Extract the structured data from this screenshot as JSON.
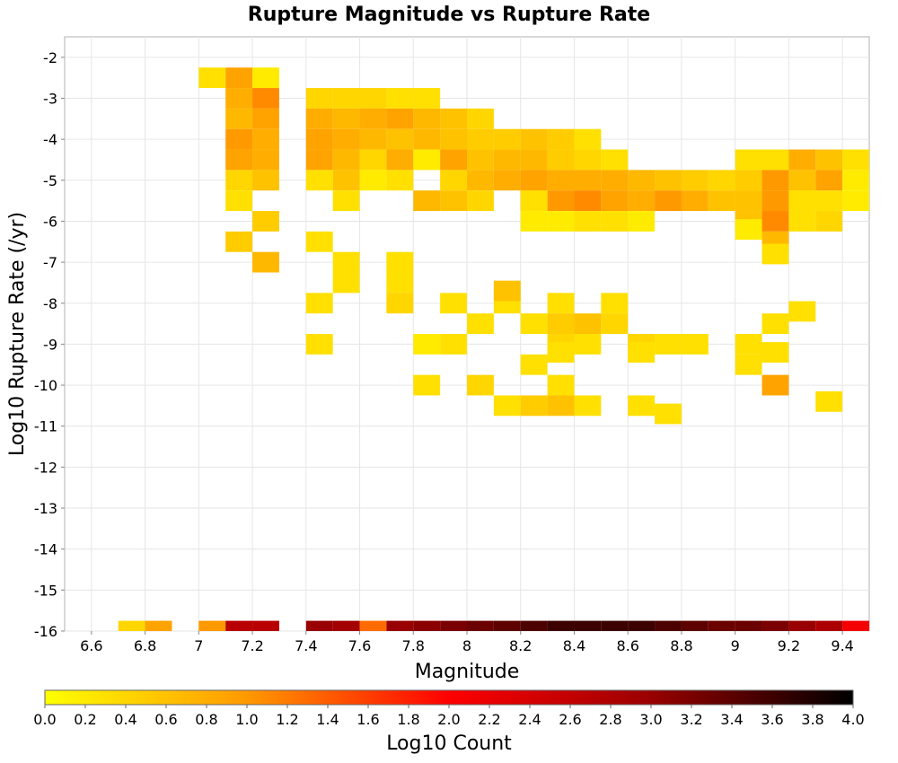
{
  "chart_data": {
    "type": "heatmap",
    "title": "Rupture Magnitude vs Rupture Rate",
    "xlabel": "Magnitude",
    "ylabel": "Log10 Rupture Rate (/yr)",
    "colorbar_label": "Log10 Count",
    "xlim": [
      6.5,
      9.5
    ],
    "ylim": [
      -16,
      -1.5
    ],
    "x_ticks": [
      "6.6",
      "6.8",
      "7",
      "7.2",
      "7.4",
      "7.6",
      "7.8",
      "8",
      "8.2",
      "8.4",
      "8.6",
      "8.8",
      "9",
      "9.2",
      "9.4"
    ],
    "y_ticks": [
      "-2",
      "-3",
      "-4",
      "-5",
      "-6",
      "-7",
      "-8",
      "-9",
      "-10",
      "-11",
      "-12",
      "-13",
      "-14",
      "-15",
      "-16"
    ],
    "colorbar_ticks": [
      "0.0",
      "0.2",
      "0.4",
      "0.6",
      "0.8",
      "1.0",
      "1.2",
      "1.4",
      "1.6",
      "1.8",
      "2.0",
      "2.2",
      "2.4",
      "2.6",
      "2.8",
      "3.0",
      "3.2",
      "3.4",
      "3.6",
      "3.8",
      "4.0"
    ],
    "colorbar_range": [
      0.0,
      4.0
    ],
    "colorscale": [
      "#ffff00",
      "#ff9900",
      "#ff0000",
      "#990000",
      "#000000"
    ],
    "grid": true,
    "cell_size": {
      "magnitude": 0.1,
      "log_rate": 0.5
    },
    "cells": [
      [
        7.05,
        -2.5,
        0.3
      ],
      [
        7.15,
        -2.5,
        0.9
      ],
      [
        7.25,
        -2.5,
        0.2
      ],
      [
        7.15,
        -3.0,
        0.8
      ],
      [
        7.25,
        -3.0,
        1.1
      ],
      [
        7.15,
        -3.5,
        0.7
      ],
      [
        7.25,
        -3.5,
        0.9
      ],
      [
        7.15,
        -4.0,
        1.0
      ],
      [
        7.25,
        -4.0,
        0.8
      ],
      [
        7.15,
        -4.5,
        0.9
      ],
      [
        7.25,
        -4.5,
        0.8
      ],
      [
        7.15,
        -5.0,
        0.4
      ],
      [
        7.25,
        -5.0,
        0.6
      ],
      [
        7.15,
        -5.5,
        0.3
      ],
      [
        7.25,
        -6.0,
        0.5
      ],
      [
        7.15,
        -6.5,
        0.5
      ],
      [
        7.25,
        -7.0,
        0.7
      ],
      [
        7.45,
        -3.0,
        0.4
      ],
      [
        7.55,
        -3.0,
        0.4
      ],
      [
        7.65,
        -3.0,
        0.4
      ],
      [
        7.75,
        -3.0,
        0.3
      ],
      [
        7.85,
        -3.0,
        0.3
      ],
      [
        7.45,
        -3.5,
        0.8
      ],
      [
        7.55,
        -3.5,
        0.7
      ],
      [
        7.65,
        -3.5,
        0.8
      ],
      [
        7.75,
        -3.5,
        0.9
      ],
      [
        7.85,
        -3.5,
        0.7
      ],
      [
        7.95,
        -3.5,
        0.6
      ],
      [
        8.05,
        -3.5,
        0.4
      ],
      [
        7.45,
        -4.0,
        0.9
      ],
      [
        7.55,
        -4.0,
        0.8
      ],
      [
        7.65,
        -4.0,
        0.7
      ],
      [
        7.75,
        -4.0,
        0.6
      ],
      [
        7.85,
        -4.0,
        0.7
      ],
      [
        7.95,
        -4.0,
        0.6
      ],
      [
        8.05,
        -4.0,
        0.5
      ],
      [
        8.15,
        -4.0,
        0.5
      ],
      [
        8.25,
        -4.0,
        0.6
      ],
      [
        8.35,
        -4.0,
        0.5
      ],
      [
        8.45,
        -4.0,
        0.3
      ],
      [
        7.45,
        -4.5,
        0.9
      ],
      [
        7.55,
        -4.5,
        0.7
      ],
      [
        7.65,
        -4.5,
        0.4
      ],
      [
        7.75,
        -4.5,
        0.8
      ],
      [
        7.85,
        -4.5,
        0.2
      ],
      [
        7.95,
        -4.5,
        0.9
      ],
      [
        8.05,
        -4.5,
        0.6
      ],
      [
        8.15,
        -4.5,
        0.7
      ],
      [
        8.25,
        -4.5,
        0.7
      ],
      [
        8.35,
        -4.5,
        0.5
      ],
      [
        8.45,
        -4.5,
        0.4
      ],
      [
        8.55,
        -4.5,
        0.3
      ],
      [
        7.45,
        -5.0,
        0.3
      ],
      [
        7.55,
        -5.0,
        0.6
      ],
      [
        7.65,
        -5.0,
        0.2
      ],
      [
        7.75,
        -5.0,
        0.3
      ],
      [
        7.95,
        -5.0,
        0.4
      ],
      [
        8.05,
        -5.0,
        0.7
      ],
      [
        8.15,
        -5.0,
        0.8
      ],
      [
        8.25,
        -5.0,
        0.9
      ],
      [
        8.35,
        -5.0,
        0.8
      ],
      [
        8.45,
        -5.0,
        0.8
      ],
      [
        8.55,
        -5.0,
        0.8
      ],
      [
        8.65,
        -5.0,
        0.7
      ],
      [
        8.75,
        -5.0,
        0.6
      ],
      [
        8.85,
        -5.0,
        0.5
      ],
      [
        8.95,
        -5.0,
        0.4
      ],
      [
        9.05,
        -5.0,
        0.4
      ],
      [
        8.25,
        -5.5,
        1.0
      ],
      [
        8.35,
        -5.5,
        1.0
      ],
      [
        8.45,
        -5.5,
        1.1
      ],
      [
        8.55,
        -5.5,
        0.9
      ],
      [
        8.65,
        -5.5,
        0.8
      ],
      [
        8.75,
        -5.5,
        1.0
      ],
      [
        8.85,
        -5.5,
        0.8
      ],
      [
        8.95,
        -5.5,
        0.6
      ],
      [
        9.05,
        -5.5,
        0.3
      ],
      [
        9.15,
        -5.5,
        0.4
      ],
      [
        9.25,
        -5.5,
        0.3
      ],
      [
        9.35,
        -5.5,
        0.3
      ],
      [
        9.45,
        -5.5,
        0.2
      ],
      [
        7.55,
        -5.5,
        0.3
      ],
      [
        7.85,
        -5.5,
        0.7
      ],
      [
        7.95,
        -5.5,
        0.6
      ],
      [
        8.05,
        -5.5,
        0.4
      ],
      [
        8.25,
        -5.5,
        0.3
      ],
      [
        8.25,
        -6.0,
        0.2
      ],
      [
        8.35,
        -6.0,
        0.2
      ],
      [
        8.45,
        -6.0,
        0.3
      ],
      [
        8.55,
        -6.0,
        0.3
      ],
      [
        8.65,
        -6.0,
        0.2
      ],
      [
        7.45,
        -6.5,
        0.3
      ],
      [
        7.55,
        -7.0,
        0.3
      ],
      [
        7.75,
        -7.0,
        0.3
      ],
      [
        7.55,
        -7.5,
        0.3
      ],
      [
        7.75,
        -7.5,
        0.3
      ],
      [
        7.45,
        -8.0,
        0.3
      ],
      [
        7.75,
        -8.0,
        0.4
      ],
      [
        7.95,
        -8.0,
        0.3
      ],
      [
        8.15,
        -8.0,
        0.3
      ],
      [
        8.35,
        -8.0,
        0.3
      ],
      [
        8.55,
        -8.0,
        0.3
      ],
      [
        8.15,
        -7.7,
        0.6
      ],
      [
        8.25,
        -8.5,
        0.3
      ],
      [
        8.35,
        -8.5,
        0.5
      ],
      [
        8.05,
        -8.5,
        0.3
      ],
      [
        8.45,
        -8.5,
        0.6
      ],
      [
        8.55,
        -8.5,
        0.4
      ],
      [
        7.45,
        -9.0,
        0.3
      ],
      [
        7.95,
        -9.0,
        0.3
      ],
      [
        8.35,
        -9.0,
        0.4
      ],
      [
        8.45,
        -9.0,
        0.3
      ],
      [
        8.65,
        -9.0,
        0.4
      ],
      [
        8.75,
        -9.0,
        0.3
      ],
      [
        8.85,
        -9.0,
        0.3
      ],
      [
        7.85,
        -9.0,
        0.2
      ],
      [
        8.65,
        -9.2,
        0.3
      ],
      [
        8.35,
        -9.2,
        0.3
      ],
      [
        8.25,
        -9.5,
        0.3
      ],
      [
        8.35,
        -10.0,
        0.3
      ],
      [
        7.85,
        -10.0,
        0.3
      ],
      [
        8.05,
        -10.0,
        0.4
      ],
      [
        8.15,
        -10.5,
        0.3
      ],
      [
        8.25,
        -10.5,
        0.5
      ],
      [
        8.35,
        -10.5,
        0.6
      ],
      [
        8.45,
        -10.5,
        0.3
      ],
      [
        8.65,
        -10.5,
        0.3
      ],
      [
        8.75,
        -10.7,
        0.3
      ],
      [
        9.05,
        -4.5,
        0.3
      ],
      [
        9.15,
        -4.5,
        0.3
      ],
      [
        9.25,
        -4.5,
        0.8
      ],
      [
        9.35,
        -4.5,
        0.6
      ],
      [
        9.45,
        -4.5,
        0.3
      ],
      [
        9.05,
        -5.0,
        0.5
      ],
      [
        9.15,
        -5.0,
        1.0
      ],
      [
        9.25,
        -5.0,
        0.6
      ],
      [
        9.35,
        -5.0,
        0.9
      ],
      [
        9.45,
        -5.0,
        0.2
      ],
      [
        9.05,
        -5.5,
        0.6
      ],
      [
        9.15,
        -5.5,
        1.0
      ],
      [
        9.25,
        -5.5,
        0.3
      ],
      [
        9.05,
        -6.0,
        0.6
      ],
      [
        9.15,
        -6.0,
        1.1
      ],
      [
        9.35,
        -6.0,
        0.4
      ],
      [
        9.25,
        -6.0,
        0.3
      ],
      [
        9.05,
        -6.2,
        0.2
      ],
      [
        9.15,
        -6.5,
        0.7
      ],
      [
        9.15,
        -6.8,
        0.3
      ],
      [
        9.25,
        -8.2,
        0.3
      ],
      [
        9.15,
        -8.5,
        0.3
      ],
      [
        9.05,
        -9.0,
        0.3
      ],
      [
        9.15,
        -9.2,
        0.3
      ],
      [
        9.05,
        -9.5,
        0.3
      ],
      [
        9.15,
        -10.0,
        0.9
      ],
      [
        9.35,
        -10.4,
        0.3
      ],
      [
        6.75,
        -16.0,
        0.4
      ],
      [
        6.85,
        -16.0,
        0.9
      ],
      [
        7.05,
        -16.0,
        1.0
      ],
      [
        7.15,
        -16.0,
        2.7
      ],
      [
        7.25,
        -16.0,
        2.7
      ],
      [
        7.45,
        -16.0,
        3.0
      ],
      [
        7.55,
        -16.0,
        2.9
      ],
      [
        7.65,
        -16.0,
        1.3
      ],
      [
        7.75,
        -16.0,
        3.0
      ],
      [
        7.85,
        -16.0,
        3.1
      ],
      [
        7.95,
        -16.0,
        3.2
      ],
      [
        8.05,
        -16.0,
        3.3
      ],
      [
        8.15,
        -16.0,
        3.4
      ],
      [
        8.25,
        -16.0,
        3.5
      ],
      [
        8.35,
        -16.0,
        3.6
      ],
      [
        8.45,
        -16.0,
        3.6
      ],
      [
        8.55,
        -16.0,
        3.6
      ],
      [
        8.65,
        -16.0,
        3.6
      ],
      [
        8.75,
        -16.0,
        3.5
      ],
      [
        8.85,
        -16.0,
        3.4
      ],
      [
        8.95,
        -16.0,
        3.3
      ],
      [
        9.05,
        -16.0,
        3.3
      ],
      [
        9.15,
        -16.0,
        3.2
      ],
      [
        9.25,
        -16.0,
        3.0
      ],
      [
        9.35,
        -16.0,
        2.8
      ],
      [
        9.45,
        -16.0,
        2.1
      ]
    ]
  }
}
